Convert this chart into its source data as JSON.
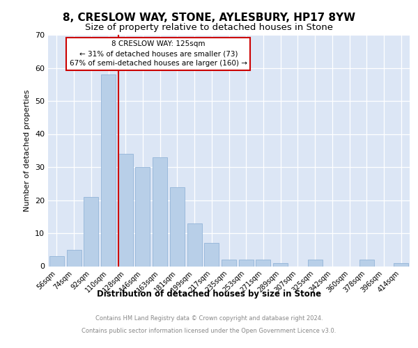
{
  "title1": "8, CRESLOW WAY, STONE, AYLESBURY, HP17 8YW",
  "title2": "Size of property relative to detached houses in Stone",
  "xlabel": "Distribution of detached houses by size in Stone",
  "ylabel": "Number of detached properties",
  "bar_color": "#b8cfe8",
  "bar_edge_color": "#93b4d8",
  "bg_color": "#dce6f5",
  "categories": [
    "56sqm",
    "74sqm",
    "92sqm",
    "110sqm",
    "128sqm",
    "146sqm",
    "163sqm",
    "181sqm",
    "199sqm",
    "217sqm",
    "235sqm",
    "253sqm",
    "271sqm",
    "289sqm",
    "307sqm",
    "325sqm",
    "342sqm",
    "360sqm",
    "378sqm",
    "396sqm",
    "414sqm"
  ],
  "values": [
    3,
    5,
    21,
    58,
    34,
    30,
    33,
    24,
    13,
    7,
    2,
    2,
    2,
    1,
    0,
    2,
    0,
    0,
    2,
    0,
    1
  ],
  "vline_pos": 3.57,
  "vline_color": "#cc0000",
  "annotation_title": "8 CRESLOW WAY: 125sqm",
  "annotation_line1": "← 31% of detached houses are smaller (73)",
  "annotation_line2": "67% of semi-detached houses are larger (160) →",
  "annotation_box_color": "#ffffff",
  "annotation_box_edge": "#cc0000",
  "ylim": [
    0,
    70
  ],
  "yticks": [
    0,
    10,
    20,
    30,
    40,
    50,
    60,
    70
  ],
  "footnote1": "Contains HM Land Registry data © Crown copyright and database right 2024.",
  "footnote2": "Contains public sector information licensed under the Open Government Licence v3.0.",
  "title1_fontsize": 11,
  "title2_fontsize": 9.5,
  "axis_fontsize": 8,
  "ylabel_fontsize": 8,
  "xlabel_fontsize": 8.5,
  "tick_fontsize": 7,
  "annot_fontsize": 7.5,
  "footnote_fontsize": 6,
  "footnote_color": "#888888"
}
